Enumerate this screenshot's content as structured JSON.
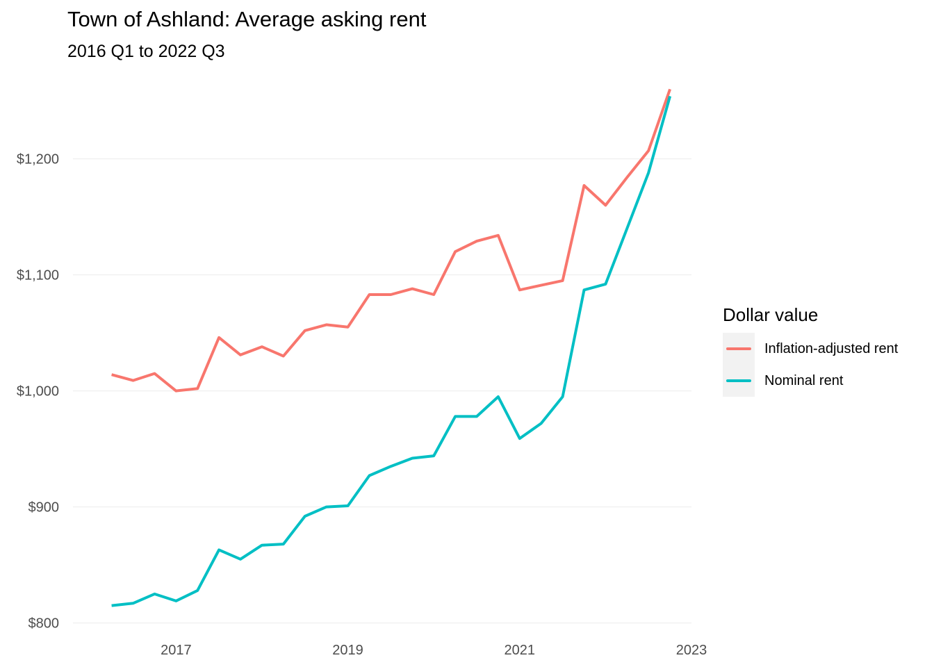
{
  "chart_data": {
    "type": "line",
    "title": "Town of Ashland: Average asking rent",
    "subtitle": "2016 Q1 to 2022 Q3",
    "xlabel": "",
    "ylabel": "",
    "xlim": [
      2015.8,
      2023
    ],
    "ylim": [
      795,
      1265
    ],
    "x_ticks": [
      {
        "value": 2017,
        "label": "2017"
      },
      {
        "value": 2019,
        "label": "2019"
      },
      {
        "value": 2021,
        "label": "2021"
      },
      {
        "value": 2023,
        "label": "2023"
      }
    ],
    "y_ticks": [
      {
        "value": 800,
        "label": "$800"
      },
      {
        "value": 900,
        "label": "$900"
      },
      {
        "value": 1000,
        "label": "$1,000"
      },
      {
        "value": 1100,
        "label": "$1,100"
      },
      {
        "value": 1200,
        "label": "$1,200"
      }
    ],
    "grid": true,
    "legend": {
      "title": "Dollar value",
      "position": "right"
    },
    "x": [
      2016.25,
      2016.5,
      2016.75,
      2017.0,
      2017.25,
      2017.5,
      2017.75,
      2018.0,
      2018.25,
      2018.5,
      2018.75,
      2019.0,
      2019.25,
      2019.5,
      2019.75,
      2020.0,
      2020.25,
      2020.5,
      2020.75,
      2021.0,
      2021.25,
      2021.5,
      2021.75,
      2022.0,
      2022.25,
      2022.5,
      2022.75
    ],
    "series": [
      {
        "name": "Inflation-adjusted rent",
        "color": "#F8766D",
        "values": [
          1014,
          1009,
          1015,
          1000,
          1002,
          1046,
          1031,
          1038,
          1030,
          1052,
          1057,
          1055,
          1083,
          1083,
          1088,
          1083,
          1120,
          1129,
          1134,
          1087,
          1091,
          1095,
          1177,
          1160,
          1184,
          1207,
          1260
        ]
      },
      {
        "name": "Nominal rent",
        "color": "#00BFC4",
        "values": [
          815,
          817,
          825,
          819,
          828,
          863,
          855,
          867,
          868,
          892,
          900,
          901,
          927,
          935,
          942,
          944,
          978,
          978,
          995,
          959,
          972,
          995,
          1087,
          1092,
          1140,
          1188,
          1254
        ]
      }
    ]
  }
}
